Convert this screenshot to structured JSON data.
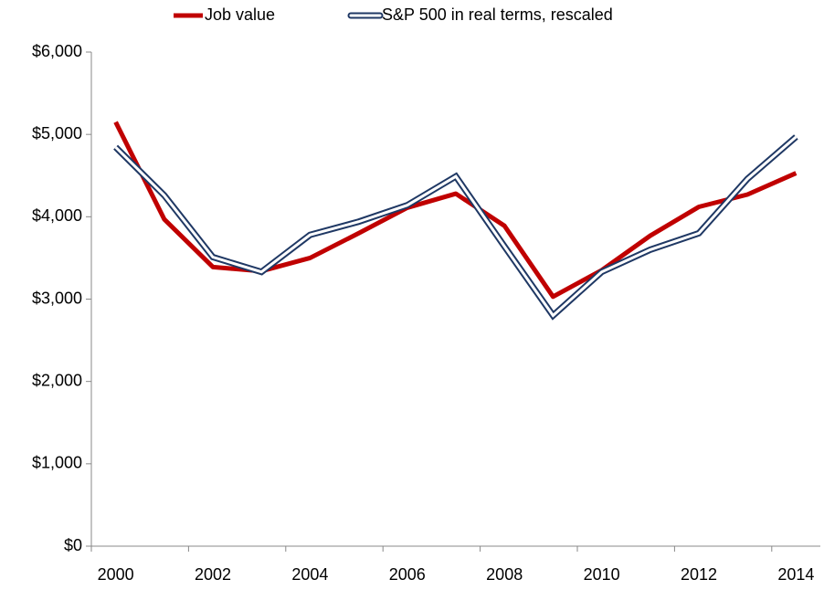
{
  "chart_data": {
    "type": "line",
    "categories": [
      "2000",
      null,
      "2002",
      null,
      "2004",
      null,
      "2006",
      null,
      "2008",
      null,
      "2010",
      null,
      "2012",
      null,
      "2014"
    ],
    "series": [
      {
        "name": "Job value",
        "color": "#c00000",
        "values": [
          5150,
          3970,
          3390,
          3340,
          3500,
          3800,
          4110,
          4280,
          3890,
          3030,
          3350,
          3770,
          4120,
          4270,
          4530
        ]
      },
      {
        "name": "S&P 500 in real terms, rescaled",
        "color": "#1f3864",
        "values": [
          4845,
          4260,
          3510,
          3330,
          3780,
          3940,
          4140,
          4490,
          3640,
          2800,
          3330,
          3600,
          3800,
          4460,
          4970
        ]
      }
    ],
    "ylim": [
      0,
      6000
    ],
    "yticks": [
      {
        "value": 0,
        "label": "$0"
      },
      {
        "value": 1000,
        "label": "$1,000"
      },
      {
        "value": 2000,
        "label": "$2,000"
      },
      {
        "value": 3000,
        "label": "$3,000"
      },
      {
        "value": 4000,
        "label": "$4,000"
      },
      {
        "value": 5000,
        "label": "$5,000"
      },
      {
        "value": 6000,
        "label": "$6,000"
      }
    ],
    "legend": "top"
  }
}
